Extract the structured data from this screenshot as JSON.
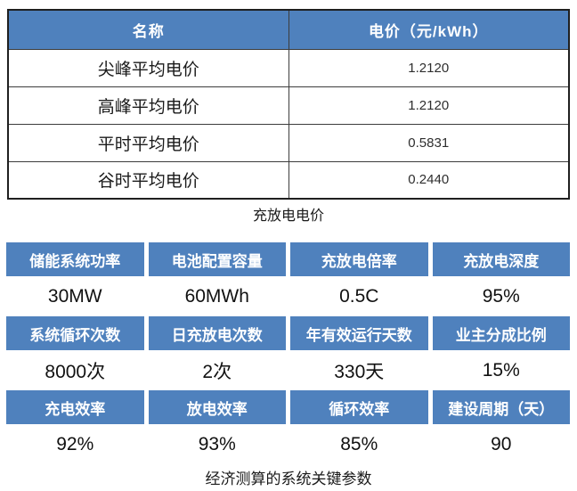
{
  "colors": {
    "header_blue": "#4F81BD",
    "header_text": "#ffffff",
    "body_text": "#1a1a1a"
  },
  "price_table": {
    "caption": "充放电电价",
    "columns": [
      "名称",
      "电价（元/kWh）"
    ],
    "rows": [
      {
        "name": "尖峰平均电价",
        "value": "1.2120"
      },
      {
        "name": "高峰平均电价",
        "value": "1.2120"
      },
      {
        "name": "平时平均电价",
        "value": "0.5831"
      },
      {
        "name": "谷时平均电价",
        "value": "0.2440"
      }
    ]
  },
  "params_table": {
    "caption": "经济测算的系统关键参数",
    "groups": [
      {
        "headers": [
          "储能系统功率",
          "电池配置容量",
          "充放电倍率",
          "充放电深度"
        ],
        "values": [
          "30MW",
          "60MWh",
          "0.5C",
          "95%"
        ]
      },
      {
        "headers": [
          "系统循环次数",
          "日充放电次数",
          "年有效运行天数",
          "业主分成比例"
        ],
        "values": [
          "8000次",
          "2次",
          "330天",
          "15%"
        ]
      },
      {
        "headers": [
          "充电效率",
          "放电效率",
          "循环效率",
          "建设周期（天）"
        ],
        "values": [
          "92%",
          "93%",
          "85%",
          "90"
        ]
      }
    ]
  }
}
